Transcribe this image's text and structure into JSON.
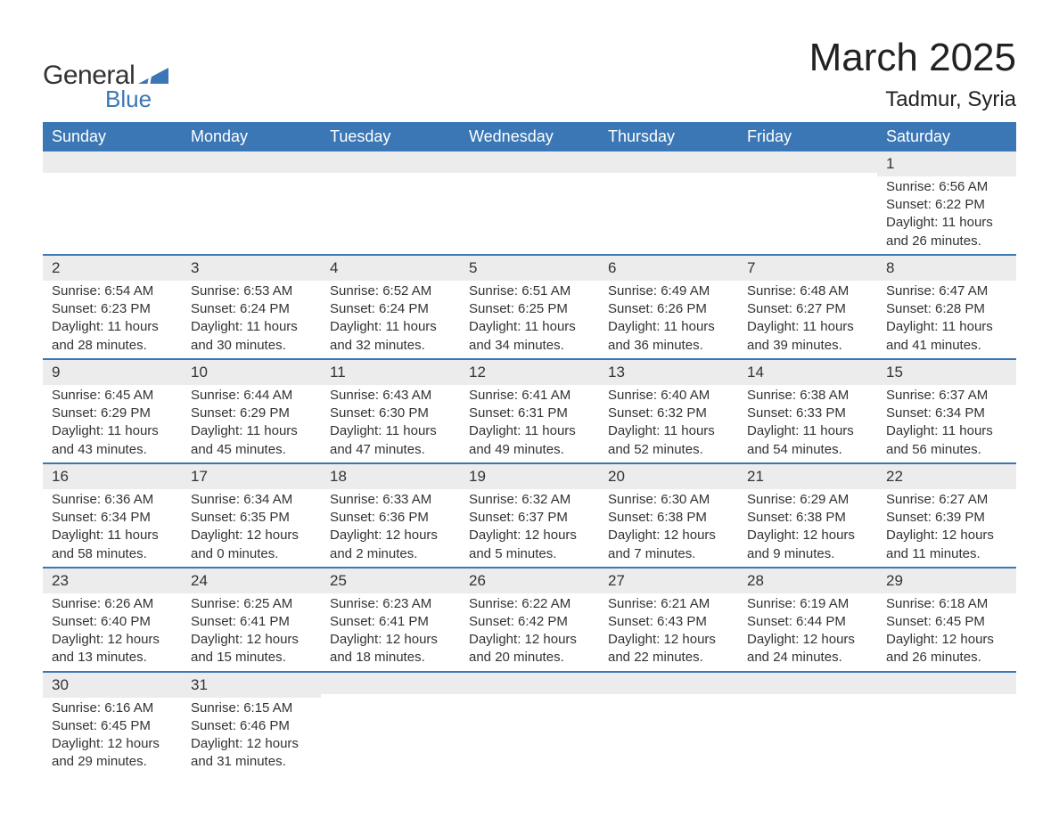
{
  "logo": {
    "line1": "General",
    "line2": "Blue",
    "text_color_1": "#333333",
    "text_color_2": "#3b77b5",
    "shape_color": "#3b77b5"
  },
  "title": {
    "month": "March 2025",
    "location": "Tadmur, Syria",
    "month_fontsize": 44,
    "location_fontsize": 24,
    "color": "#222222"
  },
  "styling": {
    "header_bg": "#3b77b5",
    "header_text_color": "#ffffff",
    "header_fontsize": 18,
    "row_separator_color": "#3b77b5",
    "daynum_bg": "#ececec",
    "body_text_color": "#333333",
    "body_fontsize": 15,
    "page_bg": "#ffffff"
  },
  "weekdays": [
    "Sunday",
    "Monday",
    "Tuesday",
    "Wednesday",
    "Thursday",
    "Friday",
    "Saturday"
  ],
  "weeks": [
    [
      {
        "empty": true
      },
      {
        "empty": true
      },
      {
        "empty": true
      },
      {
        "empty": true
      },
      {
        "empty": true
      },
      {
        "empty": true
      },
      {
        "day": "1",
        "sunrise": "Sunrise: 6:56 AM",
        "sunset": "Sunset: 6:22 PM",
        "daylight1": "Daylight: 11 hours",
        "daylight2": "and 26 minutes."
      }
    ],
    [
      {
        "day": "2",
        "sunrise": "Sunrise: 6:54 AM",
        "sunset": "Sunset: 6:23 PM",
        "daylight1": "Daylight: 11 hours",
        "daylight2": "and 28 minutes."
      },
      {
        "day": "3",
        "sunrise": "Sunrise: 6:53 AM",
        "sunset": "Sunset: 6:24 PM",
        "daylight1": "Daylight: 11 hours",
        "daylight2": "and 30 minutes."
      },
      {
        "day": "4",
        "sunrise": "Sunrise: 6:52 AM",
        "sunset": "Sunset: 6:24 PM",
        "daylight1": "Daylight: 11 hours",
        "daylight2": "and 32 minutes."
      },
      {
        "day": "5",
        "sunrise": "Sunrise: 6:51 AM",
        "sunset": "Sunset: 6:25 PM",
        "daylight1": "Daylight: 11 hours",
        "daylight2": "and 34 minutes."
      },
      {
        "day": "6",
        "sunrise": "Sunrise: 6:49 AM",
        "sunset": "Sunset: 6:26 PM",
        "daylight1": "Daylight: 11 hours",
        "daylight2": "and 36 minutes."
      },
      {
        "day": "7",
        "sunrise": "Sunrise: 6:48 AM",
        "sunset": "Sunset: 6:27 PM",
        "daylight1": "Daylight: 11 hours",
        "daylight2": "and 39 minutes."
      },
      {
        "day": "8",
        "sunrise": "Sunrise: 6:47 AM",
        "sunset": "Sunset: 6:28 PM",
        "daylight1": "Daylight: 11 hours",
        "daylight2": "and 41 minutes."
      }
    ],
    [
      {
        "day": "9",
        "sunrise": "Sunrise: 6:45 AM",
        "sunset": "Sunset: 6:29 PM",
        "daylight1": "Daylight: 11 hours",
        "daylight2": "and 43 minutes."
      },
      {
        "day": "10",
        "sunrise": "Sunrise: 6:44 AM",
        "sunset": "Sunset: 6:29 PM",
        "daylight1": "Daylight: 11 hours",
        "daylight2": "and 45 minutes."
      },
      {
        "day": "11",
        "sunrise": "Sunrise: 6:43 AM",
        "sunset": "Sunset: 6:30 PM",
        "daylight1": "Daylight: 11 hours",
        "daylight2": "and 47 minutes."
      },
      {
        "day": "12",
        "sunrise": "Sunrise: 6:41 AM",
        "sunset": "Sunset: 6:31 PM",
        "daylight1": "Daylight: 11 hours",
        "daylight2": "and 49 minutes."
      },
      {
        "day": "13",
        "sunrise": "Sunrise: 6:40 AM",
        "sunset": "Sunset: 6:32 PM",
        "daylight1": "Daylight: 11 hours",
        "daylight2": "and 52 minutes."
      },
      {
        "day": "14",
        "sunrise": "Sunrise: 6:38 AM",
        "sunset": "Sunset: 6:33 PM",
        "daylight1": "Daylight: 11 hours",
        "daylight2": "and 54 minutes."
      },
      {
        "day": "15",
        "sunrise": "Sunrise: 6:37 AM",
        "sunset": "Sunset: 6:34 PM",
        "daylight1": "Daylight: 11 hours",
        "daylight2": "and 56 minutes."
      }
    ],
    [
      {
        "day": "16",
        "sunrise": "Sunrise: 6:36 AM",
        "sunset": "Sunset: 6:34 PM",
        "daylight1": "Daylight: 11 hours",
        "daylight2": "and 58 minutes."
      },
      {
        "day": "17",
        "sunrise": "Sunrise: 6:34 AM",
        "sunset": "Sunset: 6:35 PM",
        "daylight1": "Daylight: 12 hours",
        "daylight2": "and 0 minutes."
      },
      {
        "day": "18",
        "sunrise": "Sunrise: 6:33 AM",
        "sunset": "Sunset: 6:36 PM",
        "daylight1": "Daylight: 12 hours",
        "daylight2": "and 2 minutes."
      },
      {
        "day": "19",
        "sunrise": "Sunrise: 6:32 AM",
        "sunset": "Sunset: 6:37 PM",
        "daylight1": "Daylight: 12 hours",
        "daylight2": "and 5 minutes."
      },
      {
        "day": "20",
        "sunrise": "Sunrise: 6:30 AM",
        "sunset": "Sunset: 6:38 PM",
        "daylight1": "Daylight: 12 hours",
        "daylight2": "and 7 minutes."
      },
      {
        "day": "21",
        "sunrise": "Sunrise: 6:29 AM",
        "sunset": "Sunset: 6:38 PM",
        "daylight1": "Daylight: 12 hours",
        "daylight2": "and 9 minutes."
      },
      {
        "day": "22",
        "sunrise": "Sunrise: 6:27 AM",
        "sunset": "Sunset: 6:39 PM",
        "daylight1": "Daylight: 12 hours",
        "daylight2": "and 11 minutes."
      }
    ],
    [
      {
        "day": "23",
        "sunrise": "Sunrise: 6:26 AM",
        "sunset": "Sunset: 6:40 PM",
        "daylight1": "Daylight: 12 hours",
        "daylight2": "and 13 minutes."
      },
      {
        "day": "24",
        "sunrise": "Sunrise: 6:25 AM",
        "sunset": "Sunset: 6:41 PM",
        "daylight1": "Daylight: 12 hours",
        "daylight2": "and 15 minutes."
      },
      {
        "day": "25",
        "sunrise": "Sunrise: 6:23 AM",
        "sunset": "Sunset: 6:41 PM",
        "daylight1": "Daylight: 12 hours",
        "daylight2": "and 18 minutes."
      },
      {
        "day": "26",
        "sunrise": "Sunrise: 6:22 AM",
        "sunset": "Sunset: 6:42 PM",
        "daylight1": "Daylight: 12 hours",
        "daylight2": "and 20 minutes."
      },
      {
        "day": "27",
        "sunrise": "Sunrise: 6:21 AM",
        "sunset": "Sunset: 6:43 PM",
        "daylight1": "Daylight: 12 hours",
        "daylight2": "and 22 minutes."
      },
      {
        "day": "28",
        "sunrise": "Sunrise: 6:19 AM",
        "sunset": "Sunset: 6:44 PM",
        "daylight1": "Daylight: 12 hours",
        "daylight2": "and 24 minutes."
      },
      {
        "day": "29",
        "sunrise": "Sunrise: 6:18 AM",
        "sunset": "Sunset: 6:45 PM",
        "daylight1": "Daylight: 12 hours",
        "daylight2": "and 26 minutes."
      }
    ],
    [
      {
        "day": "30",
        "sunrise": "Sunrise: 6:16 AM",
        "sunset": "Sunset: 6:45 PM",
        "daylight1": "Daylight: 12 hours",
        "daylight2": "and 29 minutes."
      },
      {
        "day": "31",
        "sunrise": "Sunrise: 6:15 AM",
        "sunset": "Sunset: 6:46 PM",
        "daylight1": "Daylight: 12 hours",
        "daylight2": "and 31 minutes."
      },
      {
        "empty": true
      },
      {
        "empty": true
      },
      {
        "empty": true
      },
      {
        "empty": true
      },
      {
        "empty": true
      }
    ]
  ]
}
